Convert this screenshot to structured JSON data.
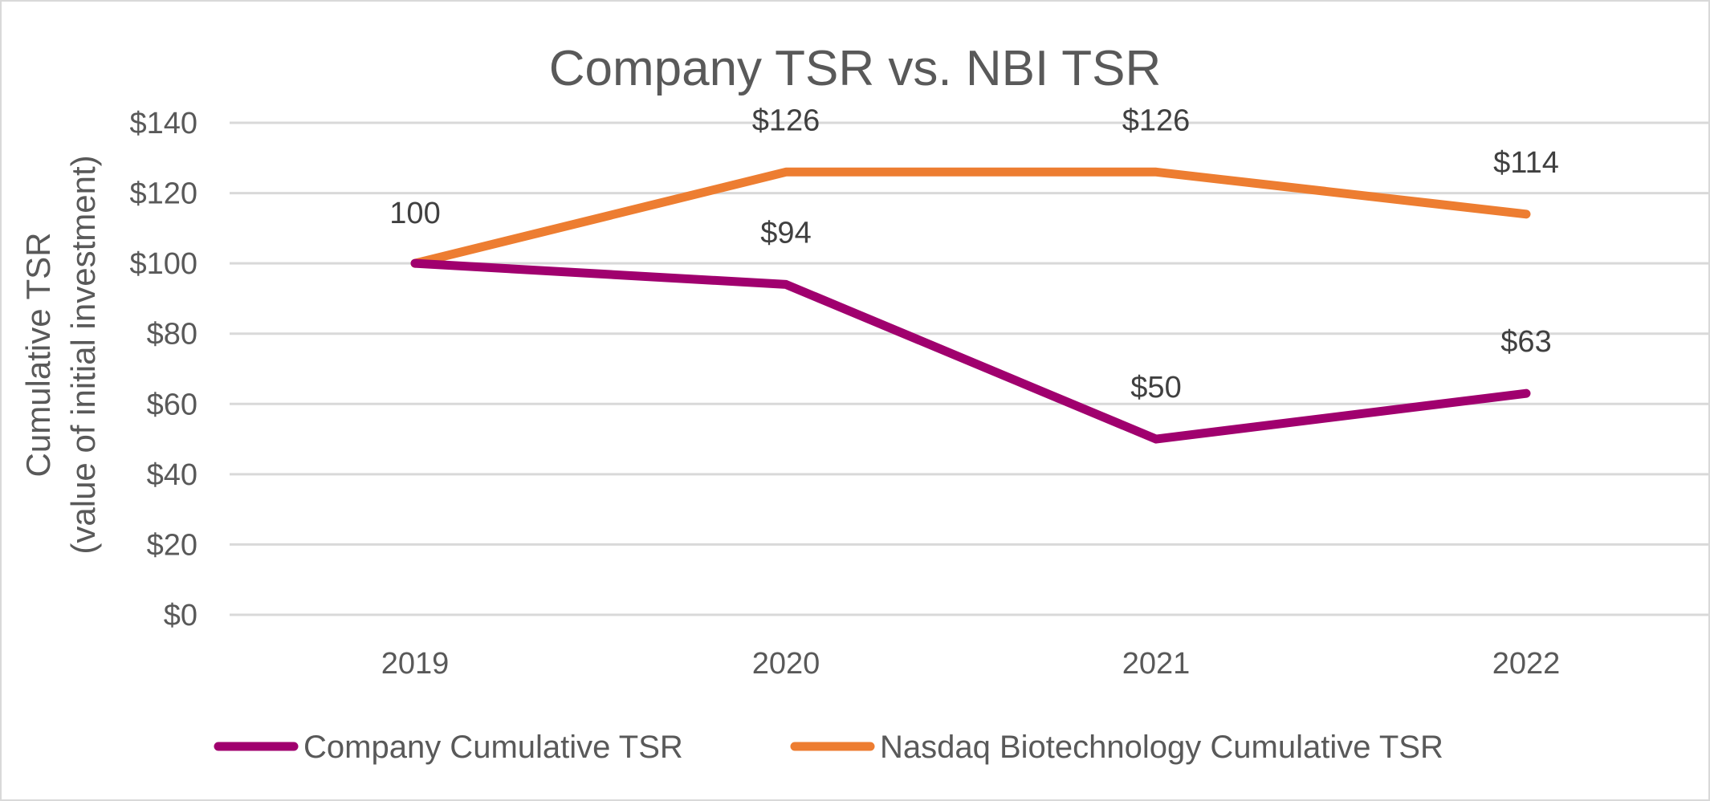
{
  "chart_data": {
    "type": "line",
    "title": "Company TSR vs. NBI TSR",
    "ylabel_line1": "Cumulative TSR",
    "ylabel_line2": "(value of initial investment)",
    "xlabel": "",
    "categories": [
      "2019",
      "2020",
      "2021",
      "2022"
    ],
    "ylim": [
      0,
      140
    ],
    "ytick_values": [
      0,
      20,
      40,
      60,
      80,
      100,
      120,
      140
    ],
    "ytick_labels": [
      "$0",
      "$20",
      "$40",
      "$60",
      "$80",
      "$100",
      "$120",
      "$140"
    ],
    "grid": true,
    "legend_position": "bottom",
    "series": [
      {
        "name": "Company Cumulative TSR",
        "color": "#a0006e",
        "values": [
          100,
          94,
          50,
          63
        ],
        "labels": [
          "100",
          "$94",
          "$50",
          "$63"
        ]
      },
      {
        "name": "Nasdaq Biotechnology Cumulative TSR",
        "color": "#ed7d31",
        "values": [
          100,
          126,
          126,
          114
        ],
        "labels": [
          "",
          "$126",
          "$126",
          "$114"
        ]
      }
    ]
  }
}
